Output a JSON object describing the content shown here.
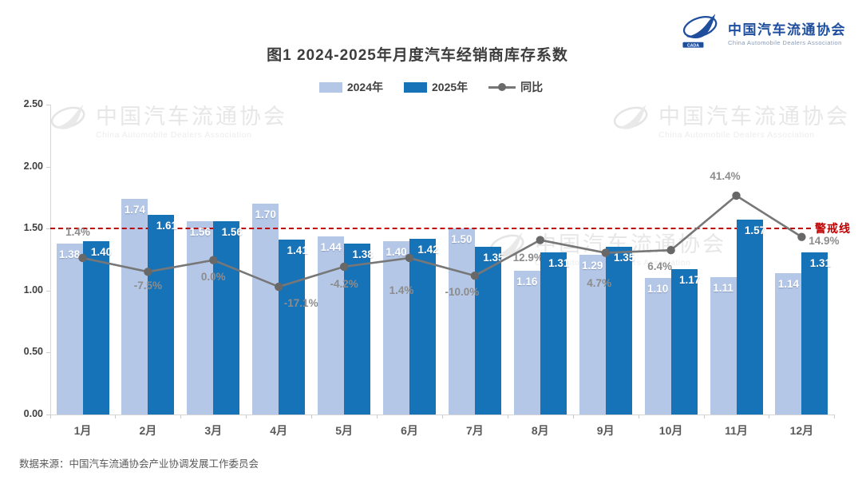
{
  "page": {
    "background": "#ffffff"
  },
  "header": {
    "title": "图1  2024-2025年月度汽车经销商库存系数",
    "logo": {
      "name_cn": "中国汽车流通协会",
      "name_en": "China Automobile Dealers Association",
      "mark_text": "CADA",
      "brand_color": "#1f4e9d"
    }
  },
  "legend": {
    "items": [
      {
        "label": "2024年",
        "swatch_color": "#b4c7e7",
        "type": "bar"
      },
      {
        "label": "2025年",
        "swatch_color": "#1773b8",
        "type": "bar"
      },
      {
        "label": "同比",
        "swatch_color": "#777777",
        "type": "line-marker"
      }
    ]
  },
  "watermark": {
    "name_cn": "中国汽车流通协会",
    "name_en": "China Automobile Dealers Association"
  },
  "warning": {
    "label": "警戒线",
    "value": 1.5,
    "color": "#c00000"
  },
  "footer": {
    "source": "数据来源：中国汽车流通协会产业协调发展工作委员会"
  },
  "chart_data": {
    "type": "bar",
    "subtype": "grouped-bars-with-yoy-line",
    "title": "图1  2024-2025年月度汽车经销商库存系数",
    "categories": [
      "1月",
      "2月",
      "3月",
      "4月",
      "5月",
      "6月",
      "7月",
      "8月",
      "9月",
      "10月",
      "11月",
      "12月"
    ],
    "series": [
      {
        "name": "2024年",
        "type": "bar",
        "color": "#b4c7e7",
        "values": [
          1.38,
          1.74,
          1.56,
          1.7,
          1.44,
          1.4,
          1.5,
          1.16,
          1.29,
          1.1,
          1.11,
          1.14
        ]
      },
      {
        "name": "2025年",
        "type": "bar",
        "color": "#1773b8",
        "values": [
          1.4,
          1.61,
          1.56,
          1.41,
          1.38,
          1.42,
          1.35,
          1.31,
          1.35,
          1.17,
          1.57,
          1.31
        ]
      },
      {
        "name": "同比",
        "type": "line",
        "color": "#777777",
        "values_pct": [
          1.4,
          -7.5,
          0.0,
          -17.1,
          -4.2,
          1.4,
          -10.0,
          12.9,
          4.7,
          6.4,
          41.4,
          14.9
        ],
        "labels": [
          "1.4%",
          "-7.5%",
          "0.0%",
          "-17.1%",
          "-4.2%",
          "1.4%",
          "-10.0%",
          "12.9%",
          "4.7%",
          "6.4%",
          "41.4%",
          "14.9%"
        ]
      }
    ],
    "ylim": [
      0,
      2.5
    ],
    "yticks": [
      "0.00",
      "0.50",
      "1.00",
      "1.50",
      "2.00",
      "2.50"
    ],
    "warning_line_value": 1.5,
    "grid": false,
    "legend_position": "top",
    "xlabel": "",
    "ylabel": ""
  }
}
